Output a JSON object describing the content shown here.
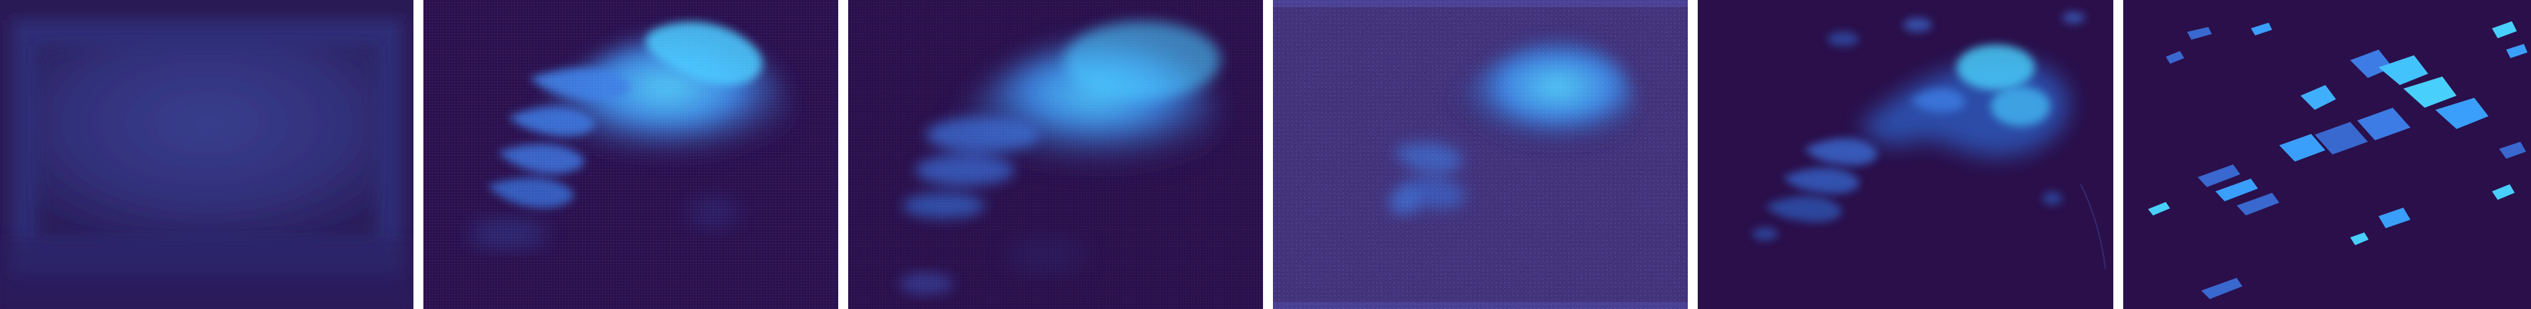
{
  "figure": {
    "panel_count": 6,
    "colormap": "dark-purple-to-cyan",
    "colors": {
      "background": "#2b0f4c",
      "background_alt": "#2f1a5a",
      "mid": "#3e3a8f",
      "blue": "#3c7be0",
      "cyan": "#4ad3ff",
      "gap": "#ffffff"
    }
  },
  "panels": [
    {
      "kind": "blank-field"
    },
    {
      "kind": "smooth-heat"
    },
    {
      "kind": "smooth-heat-blur"
    },
    {
      "kind": "noisy-heat"
    },
    {
      "kind": "sharp-heat"
    },
    {
      "kind": "sparse-mask"
    }
  ]
}
